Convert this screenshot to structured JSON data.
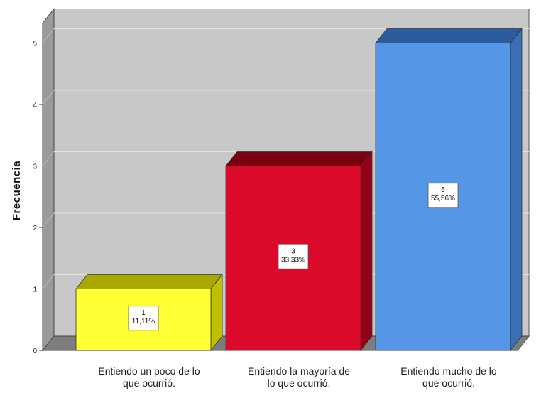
{
  "chart_data": {
    "type": "bar",
    "ylabel": "Frecuencia",
    "ylim": [
      0,
      5
    ],
    "yticks": [
      "0",
      "1",
      "2",
      "3",
      "4",
      "5"
    ],
    "grid": true,
    "categories": [
      [
        "Entiendo un poco de lo",
        "que ocurrió."
      ],
      [
        "Entiendo la mayoría de",
        "lo que ocurrió."
      ],
      [
        "Entiendo mucho de lo",
        "que ocurrió."
      ]
    ],
    "values": [
      1,
      3,
      5
    ],
    "data_labels": [
      [
        "1",
        "11,11%"
      ],
      [
        "3",
        "33,33%"
      ],
      [
        "5",
        "55,56%"
      ]
    ],
    "colors": [
      {
        "front": "#ffff33",
        "top": "#a8a800",
        "side": "#c0c000"
      },
      {
        "front": "#dc0a2a",
        "top": "#7a0012",
        "side": "#950018"
      },
      {
        "front": "#5596e6",
        "top": "#2b5c9e",
        "side": "#3a6fb5"
      }
    ],
    "background": {
      "wall": "#c8c8c8",
      "side_wall": "#9a9a9a",
      "floor": "#7d7d7d",
      "grid": "#e2e2e2"
    }
  }
}
